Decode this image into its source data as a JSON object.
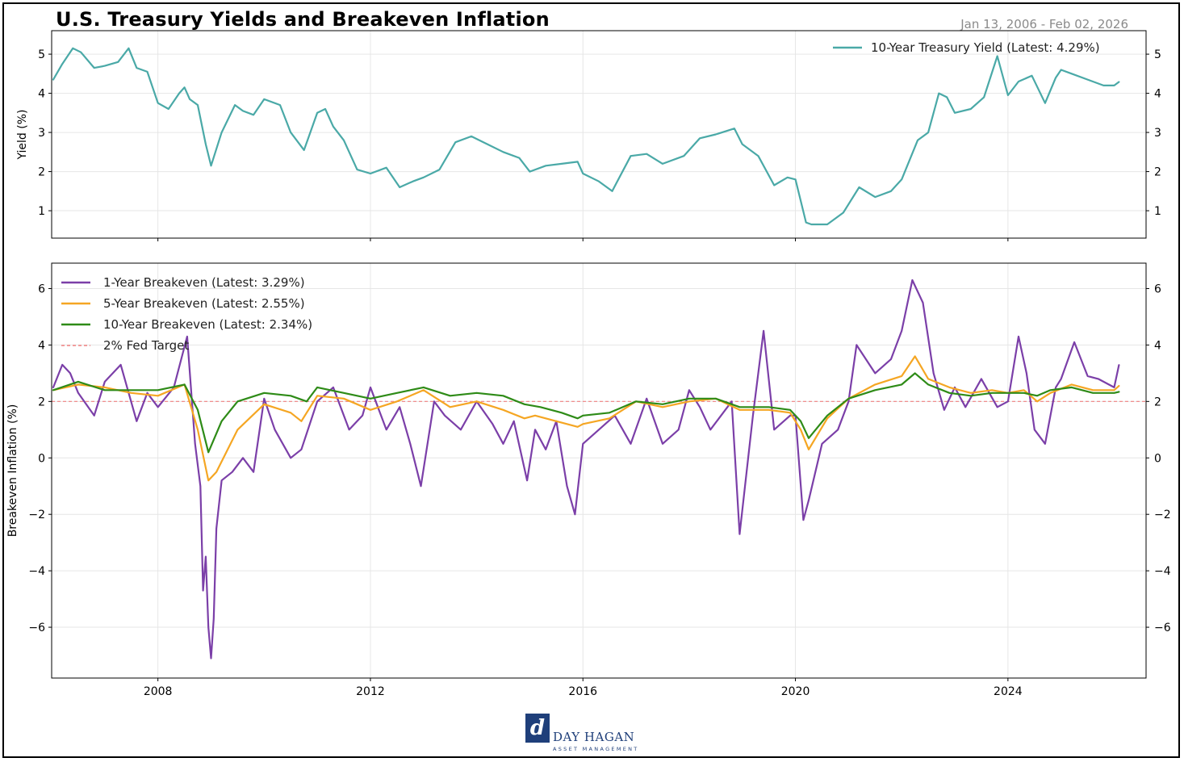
{
  "title": "U.S. Treasury Yields and Breakeven Inflation",
  "date_range": "Jan 13, 2006 - Feb 02, 2026",
  "logo": {
    "mark": "d",
    "name": "DAY HAGAN",
    "subtitle": "ASSET MANAGEMENT"
  },
  "colors": {
    "teal": "#4aa9a7",
    "purple": "#7b3fa8",
    "orange": "#f5a623",
    "green": "#2e8b17",
    "fed": "#f08080"
  },
  "chart_data": [
    {
      "type": "line",
      "title": "",
      "xlabel": "",
      "ylabel": "Yield (%)",
      "xlim": [
        2006.0,
        2026.6
      ],
      "ylim": [
        0.3,
        5.6
      ],
      "yticks": [
        1,
        2,
        3,
        4,
        5
      ],
      "xticks": [
        "2008",
        "2012",
        "2016",
        "2020",
        "2024"
      ],
      "grid": true,
      "legend_position": "top-right",
      "series": [
        {
          "name": "10-Year Treasury Yield (Latest: 4.29%)",
          "color": "#4aa9a7",
          "x": [
            2006.03,
            2006.2,
            2006.4,
            2006.55,
            2006.8,
            2007.0,
            2007.25,
            2007.45,
            2007.6,
            2007.8,
            2008.0,
            2008.2,
            2008.4,
            2008.5,
            2008.6,
            2008.75,
            2008.9,
            2009.0,
            2009.2,
            2009.45,
            2009.6,
            2009.8,
            2010.0,
            2010.3,
            2010.5,
            2010.75,
            2011.0,
            2011.15,
            2011.3,
            2011.5,
            2011.75,
            2012.0,
            2012.3,
            2012.55,
            2012.8,
            2013.0,
            2013.3,
            2013.6,
            2013.9,
            2014.2,
            2014.5,
            2014.8,
            2015.0,
            2015.3,
            2015.6,
            2015.9,
            2016.0,
            2016.3,
            2016.55,
            2016.9,
            2017.2,
            2017.5,
            2017.9,
            2018.2,
            2018.5,
            2018.85,
            2019.0,
            2019.3,
            2019.6,
            2019.85,
            2020.0,
            2020.2,
            2020.3,
            2020.6,
            2020.9,
            2021.2,
            2021.5,
            2021.8,
            2022.0,
            2022.3,
            2022.5,
            2022.7,
            2022.85,
            2023.0,
            2023.3,
            2023.55,
            2023.8,
            2024.0,
            2024.2,
            2024.45,
            2024.7,
            2024.9,
            2025.0,
            2025.2,
            2025.5,
            2025.8,
            2026.0,
            2026.09
          ],
          "values": [
            4.35,
            4.75,
            5.15,
            5.05,
            4.65,
            4.7,
            4.8,
            5.15,
            4.65,
            4.55,
            3.75,
            3.6,
            4.0,
            4.15,
            3.85,
            3.7,
            2.7,
            2.15,
            3.0,
            3.7,
            3.55,
            3.45,
            3.85,
            3.7,
            3.0,
            2.55,
            3.5,
            3.6,
            3.15,
            2.8,
            2.05,
            1.95,
            2.1,
            1.6,
            1.75,
            1.85,
            2.05,
            2.75,
            2.9,
            2.7,
            2.5,
            2.35,
            2.0,
            2.15,
            2.2,
            2.25,
            1.95,
            1.75,
            1.5,
            2.4,
            2.45,
            2.2,
            2.4,
            2.85,
            2.95,
            3.1,
            2.7,
            2.4,
            1.65,
            1.85,
            1.8,
            0.7,
            0.65,
            0.65,
            0.95,
            1.6,
            1.35,
            1.5,
            1.8,
            2.8,
            3.0,
            4.0,
            3.9,
            3.5,
            3.6,
            3.9,
            4.95,
            3.95,
            4.3,
            4.45,
            3.75,
            4.4,
            4.6,
            4.5,
            4.35,
            4.2,
            4.2,
            4.29
          ]
        }
      ]
    },
    {
      "type": "line",
      "title": "",
      "xlabel": "",
      "ylabel": "Breakeven Inflation (%)",
      "xlim": [
        2006.0,
        2026.6
      ],
      "ylim": [
        -7.8,
        6.9
      ],
      "yticks": [
        -6,
        -4,
        -2,
        0,
        2,
        4,
        6
      ],
      "xticks": [
        "2008",
        "2012",
        "2016",
        "2020",
        "2024"
      ],
      "grid": true,
      "legend_position": "top-left",
      "reference_line": {
        "name": "2% Fed Target",
        "value": 2,
        "color": "#f08080",
        "style": "dashed"
      },
      "series": [
        {
          "name": "1-Year Breakeven (Latest: 3.29%)",
          "color": "#7b3fa8",
          "x": [
            2006.03,
            2006.2,
            2006.35,
            2006.5,
            2006.8,
            2007.0,
            2007.3,
            2007.6,
            2007.8,
            2008.0,
            2008.3,
            2008.55,
            2008.7,
            2008.8,
            2008.85,
            2008.9,
            2008.95,
            2009.0,
            2009.05,
            2009.1,
            2009.2,
            2009.4,
            2009.6,
            2009.8,
            2010.0,
            2010.2,
            2010.5,
            2010.7,
            2011.0,
            2011.3,
            2011.6,
            2011.85,
            2012.0,
            2012.3,
            2012.55,
            2012.75,
            2012.95,
            2013.2,
            2013.4,
            2013.7,
            2014.0,
            2014.3,
            2014.5,
            2014.7,
            2014.95,
            2015.1,
            2015.3,
            2015.5,
            2015.7,
            2015.85,
            2016.0,
            2016.3,
            2016.6,
            2016.9,
            2017.2,
            2017.5,
            2017.8,
            2018.0,
            2018.2,
            2018.4,
            2018.6,
            2018.8,
            2018.95,
            2019.2,
            2019.4,
            2019.6,
            2019.9,
            2020.0,
            2020.15,
            2020.25,
            2020.5,
            2020.8,
            2021.0,
            2021.15,
            2021.5,
            2021.8,
            2022.0,
            2022.2,
            2022.4,
            2022.6,
            2022.8,
            2023.0,
            2023.2,
            2023.5,
            2023.8,
            2024.0,
            2024.2,
            2024.35,
            2024.5,
            2024.7,
            2024.9,
            2025.0,
            2025.25,
            2025.5,
            2025.7,
            2026.0,
            2026.09
          ],
          "values": [
            2.5,
            3.3,
            3.0,
            2.3,
            1.5,
            2.7,
            3.3,
            1.3,
            2.3,
            1.8,
            2.5,
            4.3,
            0.5,
            -1.0,
            -4.7,
            -3.5,
            -6.0,
            -7.1,
            -5.7,
            -2.5,
            -0.8,
            -0.5,
            0.0,
            -0.5,
            2.1,
            1.0,
            0.0,
            0.3,
            2.0,
            2.5,
            1.0,
            1.5,
            2.5,
            1.0,
            1.8,
            0.5,
            -1.0,
            2.0,
            1.5,
            1.0,
            2.0,
            1.2,
            0.5,
            1.3,
            -0.8,
            1.0,
            0.3,
            1.3,
            -1.0,
            -2.0,
            0.5,
            1.0,
            1.5,
            0.5,
            2.1,
            0.5,
            1.0,
            2.4,
            1.8,
            1.0,
            1.5,
            2.0,
            -2.7,
            1.5,
            4.5,
            1.0,
            1.5,
            1.5,
            -2.2,
            -1.5,
            0.5,
            1.0,
            2.0,
            4.0,
            3.0,
            3.5,
            4.5,
            6.3,
            5.5,
            3.0,
            1.7,
            2.5,
            1.8,
            2.8,
            1.8,
            2.0,
            4.3,
            3.0,
            1.0,
            0.5,
            2.5,
            2.8,
            4.1,
            2.9,
            2.8,
            2.5,
            3.29
          ]
        },
        {
          "name": "5-Year Breakeven (Latest: 2.55%)",
          "color": "#f5a623",
          "x": [
            2006.03,
            2006.5,
            2007.0,
            2007.5,
            2008.0,
            2008.5,
            2008.75,
            2008.95,
            2009.1,
            2009.5,
            2010.0,
            2010.5,
            2010.7,
            2011.0,
            2011.5,
            2012.0,
            2012.5,
            2013.0,
            2013.5,
            2014.0,
            2014.5,
            2014.9,
            2015.1,
            2015.5,
            2015.9,
            2016.0,
            2016.5,
            2017.0,
            2017.5,
            2018.0,
            2018.5,
            2018.95,
            2019.5,
            2019.9,
            2020.1,
            2020.25,
            2020.6,
            2021.0,
            2021.5,
            2022.0,
            2022.25,
            2022.5,
            2022.9,
            2023.3,
            2023.7,
            2024.0,
            2024.3,
            2024.55,
            2024.8,
            2025.2,
            2025.6,
            2026.0,
            2026.09
          ],
          "values": [
            2.4,
            2.6,
            2.5,
            2.3,
            2.2,
            2.6,
            1.0,
            -0.8,
            -0.5,
            1.0,
            1.9,
            1.6,
            1.3,
            2.2,
            2.1,
            1.7,
            2.0,
            2.4,
            1.8,
            2.0,
            1.7,
            1.4,
            1.5,
            1.3,
            1.1,
            1.2,
            1.4,
            2.0,
            1.8,
            2.0,
            2.1,
            1.7,
            1.7,
            1.6,
            1.0,
            0.3,
            1.4,
            2.1,
            2.6,
            2.9,
            3.6,
            2.8,
            2.5,
            2.3,
            2.4,
            2.3,
            2.4,
            2.0,
            2.3,
            2.6,
            2.4,
            2.4,
            2.55
          ]
        },
        {
          "name": "10-Year Breakeven (Latest: 2.34%)",
          "color": "#2e8b17",
          "x": [
            2006.03,
            2006.5,
            2007.0,
            2007.5,
            2008.0,
            2008.5,
            2008.75,
            2008.95,
            2009.2,
            2009.5,
            2010.0,
            2010.5,
            2010.8,
            2011.0,
            2011.5,
            2012.0,
            2012.5,
            2013.0,
            2013.5,
            2014.0,
            2014.5,
            2014.9,
            2015.2,
            2015.6,
            2015.9,
            2016.0,
            2016.5,
            2017.0,
            2017.5,
            2018.0,
            2018.5,
            2018.95,
            2019.5,
            2019.9,
            2020.1,
            2020.25,
            2020.6,
            2021.0,
            2021.5,
            2022.0,
            2022.25,
            2022.5,
            2022.9,
            2023.3,
            2023.7,
            2024.0,
            2024.3,
            2024.55,
            2024.8,
            2025.2,
            2025.6,
            2026.0,
            2026.09
          ],
          "values": [
            2.4,
            2.7,
            2.4,
            2.4,
            2.4,
            2.6,
            1.7,
            0.2,
            1.3,
            2.0,
            2.3,
            2.2,
            2.0,
            2.5,
            2.3,
            2.1,
            2.3,
            2.5,
            2.2,
            2.3,
            2.2,
            1.9,
            1.8,
            1.6,
            1.4,
            1.5,
            1.6,
            2.0,
            1.9,
            2.1,
            2.1,
            1.8,
            1.8,
            1.7,
            1.3,
            0.7,
            1.5,
            2.1,
            2.4,
            2.6,
            3.0,
            2.6,
            2.3,
            2.2,
            2.3,
            2.3,
            2.3,
            2.2,
            2.4,
            2.5,
            2.3,
            2.3,
            2.34
          ]
        }
      ]
    }
  ]
}
